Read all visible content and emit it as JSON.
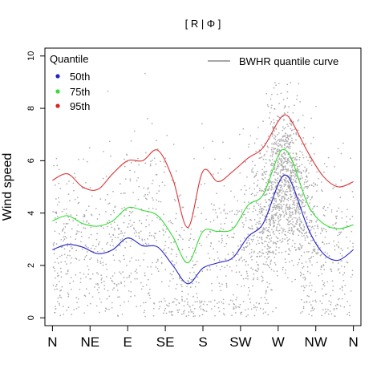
{
  "chart_data": {
    "type": "scatter",
    "title": "[ R | Φ ]",
    "xlabel": "",
    "ylabel": "Wind speed",
    "ylim": [
      -0.3,
      10.3
    ],
    "xlim": [
      -0.2,
      8.2
    ],
    "x_ticks": [
      {
        "pos": 0,
        "label": "N"
      },
      {
        "pos": 1,
        "label": "NE"
      },
      {
        "pos": 2,
        "label": "E"
      },
      {
        "pos": 3,
        "label": "SE"
      },
      {
        "pos": 4,
        "label": "S"
      },
      {
        "pos": 5,
        "label": "SW"
      },
      {
        "pos": 6,
        "label": "W"
      },
      {
        "pos": 7,
        "label": "NW"
      },
      {
        "pos": 8,
        "label": "N"
      }
    ],
    "y_ticks": [
      0,
      2,
      4,
      6,
      8,
      10
    ],
    "grid": false,
    "legend": {
      "title": "Quantile",
      "placement": "top-left",
      "entries": [
        "50th",
        "75th",
        "95th"
      ]
    },
    "curve_legend": {
      "placement": "top-right",
      "label": "BWHR quantile curve",
      "color": "#888888"
    },
    "scatter_color": "#aaaaaa",
    "series": [
      {
        "name": "50th",
        "color": "#2222cc",
        "x": [
          0,
          0.4,
          0.8,
          1.2,
          1.6,
          2.0,
          2.4,
          2.8,
          3.2,
          3.6,
          4.0,
          4.4,
          4.8,
          5.2,
          5.6,
          6.0,
          6.2,
          6.4,
          6.8,
          7.2,
          7.6,
          8.0
        ],
        "y": [
          2.6,
          2.8,
          2.7,
          2.45,
          2.6,
          3.05,
          2.75,
          2.7,
          2.0,
          1.3,
          1.9,
          2.1,
          2.3,
          3.1,
          3.6,
          5.1,
          5.45,
          5.0,
          3.4,
          2.45,
          2.2,
          2.6
        ]
      },
      {
        "name": "75th",
        "color": "#33dd33",
        "x": [
          0,
          0.4,
          0.8,
          1.2,
          1.6,
          2.0,
          2.4,
          2.8,
          3.2,
          3.6,
          4.0,
          4.4,
          4.8,
          5.2,
          5.6,
          6.0,
          6.2,
          6.4,
          6.8,
          7.2,
          7.6,
          8.0
        ],
        "y": [
          3.7,
          3.9,
          3.6,
          3.5,
          3.7,
          4.2,
          4.1,
          3.9,
          3.1,
          2.1,
          3.3,
          3.3,
          3.4,
          4.3,
          4.7,
          6.2,
          6.4,
          5.9,
          4.3,
          3.6,
          3.4,
          3.55
        ]
      },
      {
        "name": "95th",
        "color": "#dd3333",
        "x": [
          0,
          0.4,
          0.8,
          1.2,
          1.6,
          2.0,
          2.4,
          2.8,
          3.2,
          3.6,
          4.0,
          4.4,
          4.8,
          5.2,
          5.6,
          6.0,
          6.2,
          6.4,
          6.8,
          7.2,
          7.6,
          8.0
        ],
        "y": [
          5.25,
          5.5,
          5.0,
          4.9,
          5.5,
          6.0,
          6.0,
          6.4,
          5.3,
          3.45,
          5.6,
          5.2,
          5.6,
          6.1,
          6.5,
          7.5,
          7.75,
          7.4,
          6.3,
          5.4,
          5.0,
          5.2
        ]
      }
    ]
  }
}
